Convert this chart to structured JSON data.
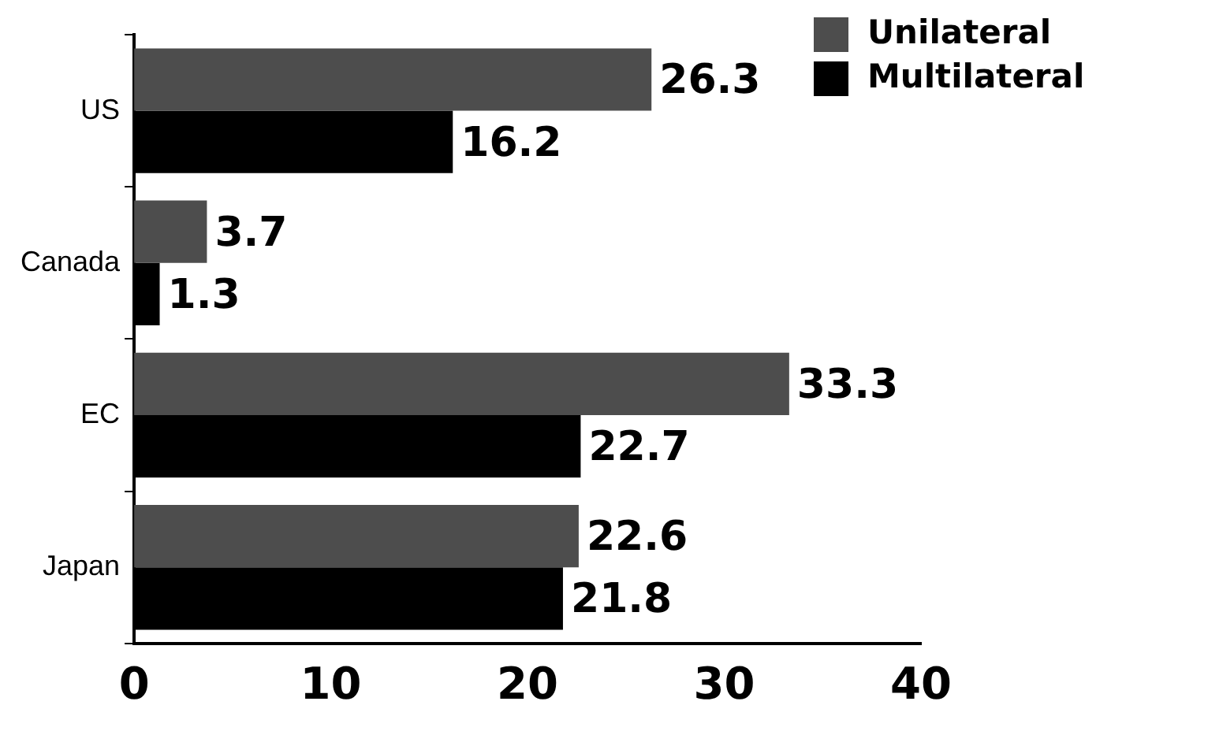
{
  "chart_data": {
    "type": "bar",
    "orientation": "horizontal",
    "categories": [
      "US",
      "Canada",
      "EC",
      "Japan"
    ],
    "series": [
      {
        "name": "Unilateral",
        "color": "#4d4d4d",
        "values": [
          26.3,
          3.7,
          33.3,
          22.6
        ]
      },
      {
        "name": "Multilateral",
        "color": "#000000",
        "values": [
          16.2,
          1.3,
          22.7,
          21.8
        ]
      }
    ],
    "xlim": [
      0,
      40
    ],
    "xticks": [
      0,
      10,
      20,
      30,
      40
    ],
    "grid": false,
    "legend": "top right",
    "data_labels": true
  }
}
